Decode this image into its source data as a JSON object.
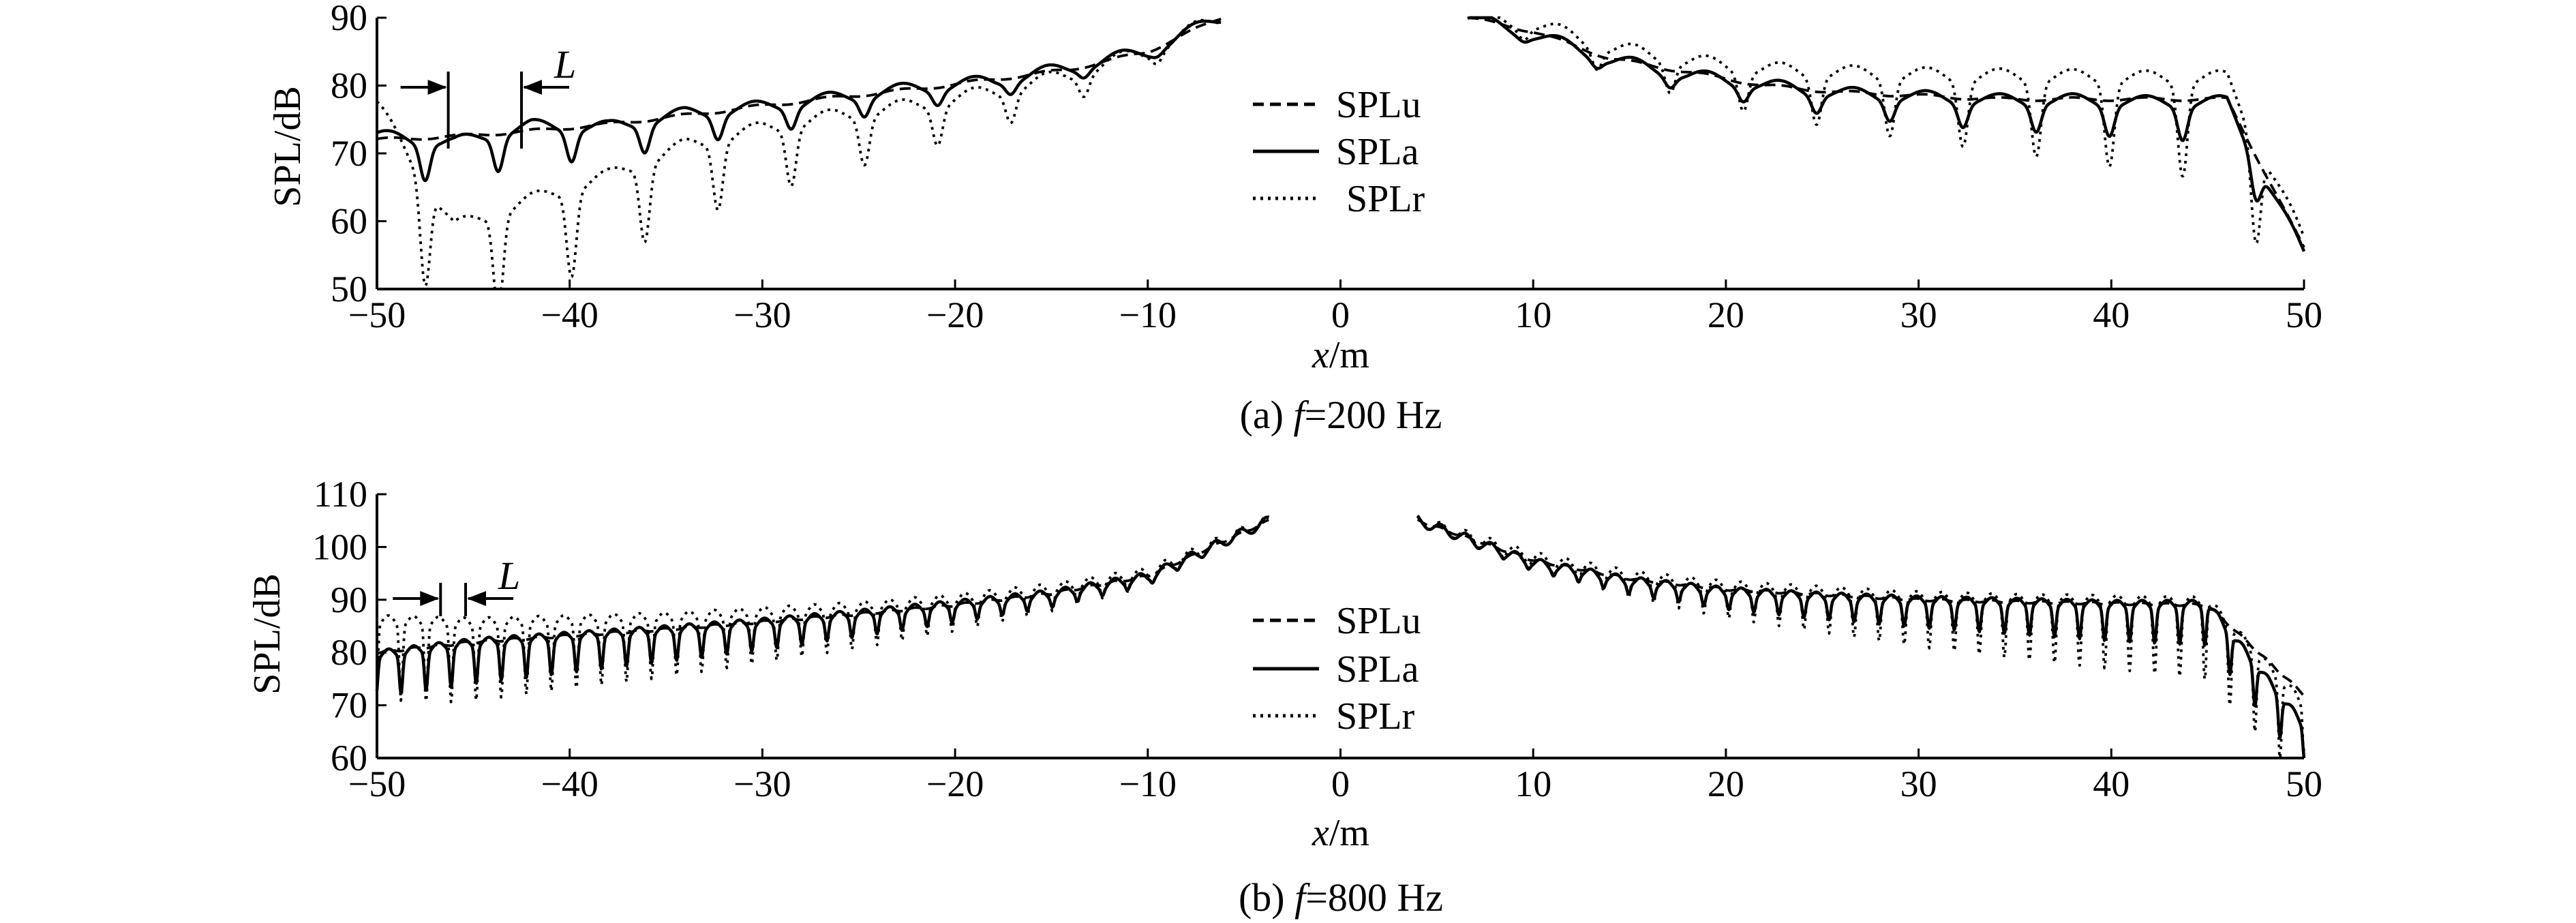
{
  "chart_data": [
    {
      "type": "line",
      "caption_prefix": "(a) ",
      "caption_var": "f",
      "caption_value": "=200 Hz",
      "xlabel_var": "x",
      "xlabel_unit": "/m",
      "ylabel": "SPL/dB",
      "xlim": [
        -50,
        50
      ],
      "ylim": [
        50,
        90
      ],
      "x_ticks": [
        -50,
        -40,
        -30,
        -20,
        -10,
        0,
        10,
        20,
        30,
        40,
        50
      ],
      "x_tick_labels": [
        "−50",
        "−40",
        "−30",
        "−20",
        "−10",
        "0",
        "10",
        "20",
        "30",
        "40",
        "50"
      ],
      "y_ticks": [
        50,
        60,
        70,
        80,
        90
      ],
      "y_tick_labels": [
        "50",
        "60",
        "70",
        "80",
        "90"
      ],
      "gap_x": [
        -6.2,
        6.6
      ],
      "marker_label": "L",
      "marker_x": [
        -46.3,
        -42.5
      ],
      "legend_position": "center",
      "legend": [
        "SPLu",
        "SPLa",
        "SPLr"
      ],
      "series": [
        {
          "name": "SPLu",
          "style": "dashed",
          "x": [
            -50,
            -46,
            -42,
            -38,
            -34,
            -30,
            -26,
            -22,
            -18,
            -14,
            -10,
            -6.2,
            6.6,
            10,
            14,
            18,
            22,
            26,
            30,
            34,
            38,
            42,
            46,
            50
          ],
          "y": [
            72,
            72.5,
            73.3,
            74.3,
            75.6,
            77,
            78.3,
            79.5,
            80.9,
            82.4,
            85,
            90,
            90,
            88,
            84,
            82,
            80,
            79,
            78.5,
            78,
            78,
            78,
            78,
            56
          ]
        },
        {
          "name": "SPLa",
          "style": "solid",
          "x": [
            -50,
            -46,
            -42,
            -38,
            -34,
            -30,
            -26,
            -22,
            -18,
            -14,
            -10,
            -6.2,
            6.6,
            10,
            14,
            18,
            22,
            26,
            30,
            34,
            38,
            42,
            46,
            50
          ],
          "y": [
            72.5,
            71.5,
            74,
            73.8,
            75.8,
            76.8,
            78.2,
            79.6,
            80.6,
            82.6,
            85,
            90,
            90,
            87.5,
            83.8,
            81.5,
            80,
            78.8,
            78.3,
            77.8,
            77.8,
            77.5,
            77.5,
            55
          ]
        },
        {
          "name": "SPLr",
          "style": "dotted",
          "x": [
            -50,
            -46,
            -42,
            -38,
            -34,
            -30,
            -26,
            -22,
            -18,
            -14,
            -10,
            -6.2,
            6.6,
            10,
            14,
            18,
            22,
            26,
            30,
            34,
            38,
            42,
            46,
            50
          ],
          "y": [
            77,
            59,
            63,
            66.5,
            71,
            73.5,
            75.5,
            77,
            79,
            81.5,
            85,
            90,
            90,
            89,
            85.5,
            83.5,
            82.3,
            81.8,
            81.5,
            81.3,
            81.2,
            81,
            81,
            57
          ]
        }
      ]
    },
    {
      "type": "line",
      "caption_prefix": "(b) ",
      "caption_var": "f",
      "caption_value": "=800 Hz",
      "xlabel_var": "x",
      "xlabel_unit": "/m",
      "ylabel": "SPL/dB",
      "xlim": [
        -50,
        50
      ],
      "ylim": [
        60,
        110
      ],
      "x_ticks": [
        -50,
        -40,
        -30,
        -20,
        -10,
        0,
        10,
        20,
        30,
        40,
        50
      ],
      "x_tick_labels": [
        "−50",
        "−40",
        "−30",
        "−20",
        "−10",
        "0",
        "10",
        "20",
        "30",
        "40",
        "50"
      ],
      "y_ticks": [
        60,
        70,
        80,
        90,
        100,
        110
      ],
      "y_tick_labels": [
        "60",
        "70",
        "80",
        "90",
        "100",
        "110"
      ],
      "gap_x": [
        -3.7,
        4.0
      ],
      "marker_label": "L",
      "marker_x": [
        -46.7,
        -45.4
      ],
      "legend_position": "center",
      "legend": [
        "SPLu",
        "SPLa",
        "SPLr"
      ],
      "series": [
        {
          "name": "SPLu",
          "style": "dashed",
          "x": [
            -50,
            -45,
            -40,
            -35,
            -30,
            -25,
            -20,
            -15,
            -10,
            -3.7,
            4,
            10,
            15,
            20,
            25,
            30,
            35,
            40,
            45,
            50
          ],
          "y": [
            80,
            82,
            83.2,
            84.4,
            85.8,
            87.3,
            89,
            91.2,
            94.5,
            105,
            105,
            97.5,
            94,
            92,
            91,
            90,
            89.6,
            89.3,
            89,
            72
          ]
        },
        {
          "name": "SPLa",
          "style": "solid",
          "x": [
            -50,
            -45,
            -40,
            -35,
            -30,
            -25,
            -20,
            -15,
            -10,
            -3.7,
            4,
            10,
            15,
            20,
            25,
            30,
            35,
            40,
            45,
            50
          ],
          "y": [
            79.5,
            81.8,
            83,
            84.2,
            85.6,
            87.2,
            89,
            91,
            94.3,
            105,
            105,
            97,
            93.5,
            91.5,
            90.5,
            89.8,
            89.4,
            89,
            89,
            66
          ]
        },
        {
          "name": "SPLr",
          "style": "dotted",
          "x": [
            -50,
            -45,
            -40,
            -35,
            -30,
            -25,
            -20,
            -15,
            -10,
            -3.7,
            4,
            10,
            15,
            20,
            25,
            30,
            35,
            40,
            45,
            50
          ],
          "y": [
            86,
            85.5,
            86,
            86.5,
            87.5,
            88.5,
            90,
            92,
            95,
            105,
            105,
            98,
            94.5,
            92.5,
            91.5,
            90.5,
            90,
            89.8,
            89.5,
            70
          ]
        }
      ]
    }
  ]
}
